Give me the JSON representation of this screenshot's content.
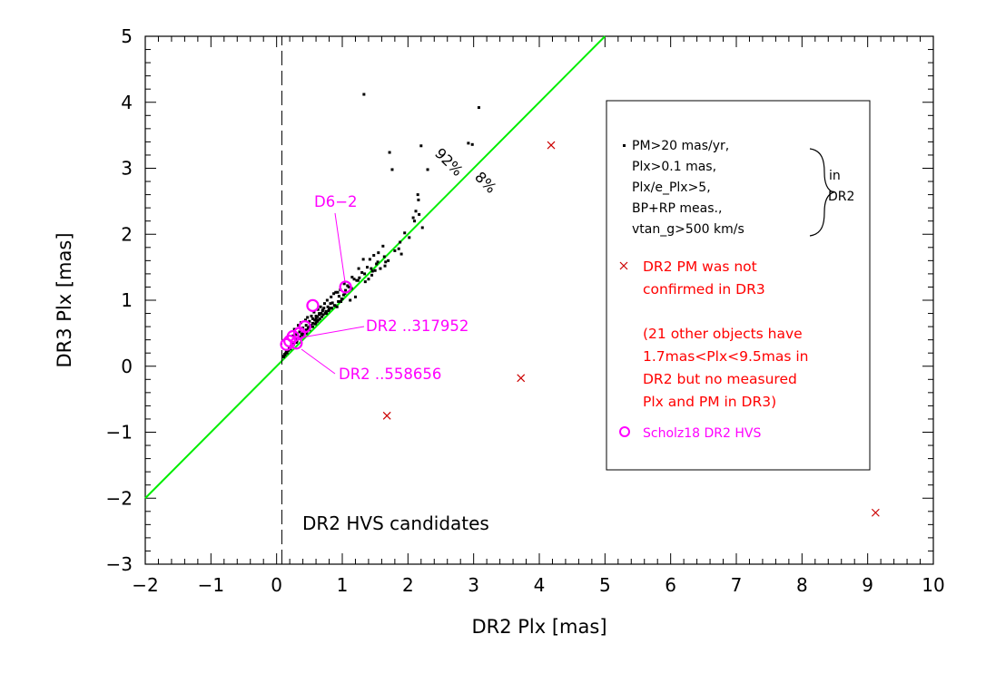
{
  "chart_data": {
    "type": "scatter",
    "xlabel": "DR2 Plx [mas]",
    "ylabel": "DR3 Plx [mas]",
    "xlim": [
      -2,
      10
    ],
    "ylim": [
      -3,
      5
    ],
    "x_ticks": [
      "-2",
      "-1",
      "0",
      "1",
      "2",
      "3",
      "4",
      "5",
      "6",
      "7",
      "8",
      "9",
      "10"
    ],
    "y_ticks": [
      "-3",
      "-2",
      "-1",
      "0",
      "1",
      "2",
      "3",
      "4",
      "5"
    ],
    "grid": false,
    "legend_position": "right",
    "legend": {
      "black_dots_lines": [
        "PM>20 mas/yr,",
        "Plx>0.1 mas,",
        "Plx/e_Plx>5,",
        "BP+RP meas.,",
        "vtan_g>500 km/s"
      ],
      "black_dots_brace_label": [
        "in",
        "DR2"
      ],
      "red_cross_lines": [
        "DR2 PM was not",
        "confirmed in DR3"
      ],
      "red_note_lines": [
        "(21 other objects have",
        "1.7mas<Plx<9.5mas in",
        "DR2 but no measured",
        "Plx and PM in DR3)"
      ],
      "magenta_circle_label": "Scholz18 DR2 HVS"
    },
    "annotations": {
      "d6_2": "D6−2",
      "dr2_317952": "DR2 ..317952",
      "dr2_558656": "DR2 ..558656",
      "pct_92": "92%",
      "pct_8": "8%",
      "panel_note": "DR2 HVS candidates"
    },
    "reference_lines": [
      {
        "name": "one-to-one",
        "color": "#00ee00",
        "points": [
          [
            -2,
            -2
          ],
          [
            5,
            5
          ]
        ]
      },
      {
        "name": "zero-parallax",
        "color": "#000000",
        "style": "dashed",
        "points": [
          [
            0.08,
            -3
          ],
          [
            0.08,
            5
          ]
        ]
      }
    ],
    "series": [
      {
        "marker": "dot",
        "color": "#000000",
        "x": [
          1.33,
          3.08,
          2.92,
          2.98,
          2.2,
          1.72,
          1.76,
          2.3,
          2.15,
          2.16,
          2.12,
          2.17,
          2.08,
          2.1,
          2.22,
          1.95,
          1.88,
          1.8,
          1.9,
          1.62,
          1.55,
          1.48,
          1.42,
          1.7,
          1.65,
          1.58,
          1.5,
          1.52,
          1.38,
          1.3,
          1.25,
          1.32,
          1.45,
          1.4,
          1.35,
          1.22,
          1.18,
          1.15,
          1.1,
          1.05,
          1.2,
          1.12,
          1.0,
          0.95,
          0.98,
          0.9,
          0.85,
          0.92,
          0.88,
          0.82,
          0.8,
          0.78,
          0.75,
          0.72,
          0.7,
          0.68,
          0.65,
          0.62,
          0.6,
          0.58,
          0.55,
          0.52,
          0.5,
          0.48,
          0.45,
          0.42,
          0.4,
          0.38,
          0.35,
          0.32,
          0.3,
          0.28,
          0.25,
          0.22,
          0.2,
          0.18,
          0.15,
          0.12,
          0.1,
          0.27,
          0.33,
          0.37,
          0.44,
          0.47,
          0.53,
          0.57,
          0.63,
          0.67,
          0.73,
          0.77,
          0.83,
          0.87,
          0.93,
          0.97,
          1.03,
          1.08,
          0.6,
          0.66,
          0.71,
          0.76,
          0.55,
          0.5,
          0.46,
          0.41,
          0.36,
          0.31,
          0.26,
          0.21,
          0.16,
          0.13,
          0.11,
          0.14,
          0.17,
          0.19,
          0.23,
          0.24,
          0.29,
          0.34,
          0.39,
          0.43,
          0.49,
          0.54,
          0.59,
          0.64,
          0.69,
          0.74,
          0.79,
          0.84,
          0.89,
          0.94,
          0.99,
          1.04,
          1.14,
          1.24,
          1.34,
          1.44,
          1.54,
          1.64,
          0.25,
          0.3,
          0.35,
          0.4,
          0.45,
          0.5,
          0.55,
          0.6,
          0.65,
          0.7,
          0.3,
          0.45,
          0.62,
          0.82,
          1.02,
          1.26,
          1.46,
          1.66,
          1.86,
          2.02
        ],
        "y": [
          4.12,
          3.92,
          3.38,
          3.36,
          3.34,
          3.24,
          2.98,
          2.98,
          2.6,
          2.52,
          2.35,
          2.3,
          2.25,
          2.2,
          2.1,
          2.02,
          1.88,
          1.75,
          1.7,
          1.82,
          1.72,
          1.68,
          1.62,
          1.6,
          1.52,
          1.48,
          1.45,
          1.55,
          1.5,
          1.42,
          1.48,
          1.62,
          1.38,
          1.32,
          1.28,
          1.3,
          1.32,
          1.35,
          1.2,
          1.15,
          1.05,
          1.0,
          1.02,
          1.06,
          0.98,
          1.12,
          0.96,
          0.9,
          0.92,
          0.95,
          0.86,
          0.9,
          0.83,
          0.88,
          0.85,
          0.8,
          0.78,
          0.75,
          0.72,
          0.7,
          0.65,
          0.62,
          0.6,
          0.58,
          0.55,
          0.52,
          0.5,
          0.48,
          0.44,
          0.42,
          0.4,
          0.36,
          0.34,
          0.3,
          0.28,
          0.24,
          0.22,
          0.18,
          0.15,
          0.56,
          0.62,
          0.66,
          0.7,
          0.74,
          0.76,
          0.82,
          0.86,
          0.9,
          0.95,
          1.0,
          1.05,
          1.1,
          1.12,
          1.16,
          1.25,
          1.22,
          0.66,
          0.72,
          0.78,
          0.8,
          0.6,
          0.55,
          0.52,
          0.46,
          0.44,
          0.38,
          0.33,
          0.26,
          0.2,
          0.17,
          0.14,
          0.2,
          0.24,
          0.26,
          0.32,
          0.3,
          0.38,
          0.42,
          0.48,
          0.5,
          0.56,
          0.6,
          0.64,
          0.7,
          0.75,
          0.8,
          0.84,
          0.88,
          0.92,
          0.98,
          1.02,
          1.1,
          1.18,
          1.3,
          1.4,
          1.48,
          1.58,
          1.66,
          0.46,
          0.48,
          0.52,
          0.58,
          0.62,
          0.68,
          0.72,
          0.76,
          0.8,
          0.84,
          0.36,
          0.5,
          0.68,
          0.88,
          1.08,
          1.34,
          1.44,
          1.58,
          1.78,
          1.95
        ]
      },
      {
        "marker": "cross",
        "color": "#cc0000",
        "x": [
          4.18,
          3.72,
          1.68,
          9.12
        ],
        "y": [
          3.35,
          -0.18,
          -0.75,
          -2.22
        ]
      },
      {
        "marker": "circle",
        "color": "#ff00ff",
        "x": [
          1.05,
          0.55,
          0.43,
          0.25,
          0.3,
          0.15,
          0.35,
          0.2
        ],
        "y": [
          1.2,
          0.92,
          0.6,
          0.45,
          0.35,
          0.33,
          0.5,
          0.38
        ]
      }
    ]
  }
}
